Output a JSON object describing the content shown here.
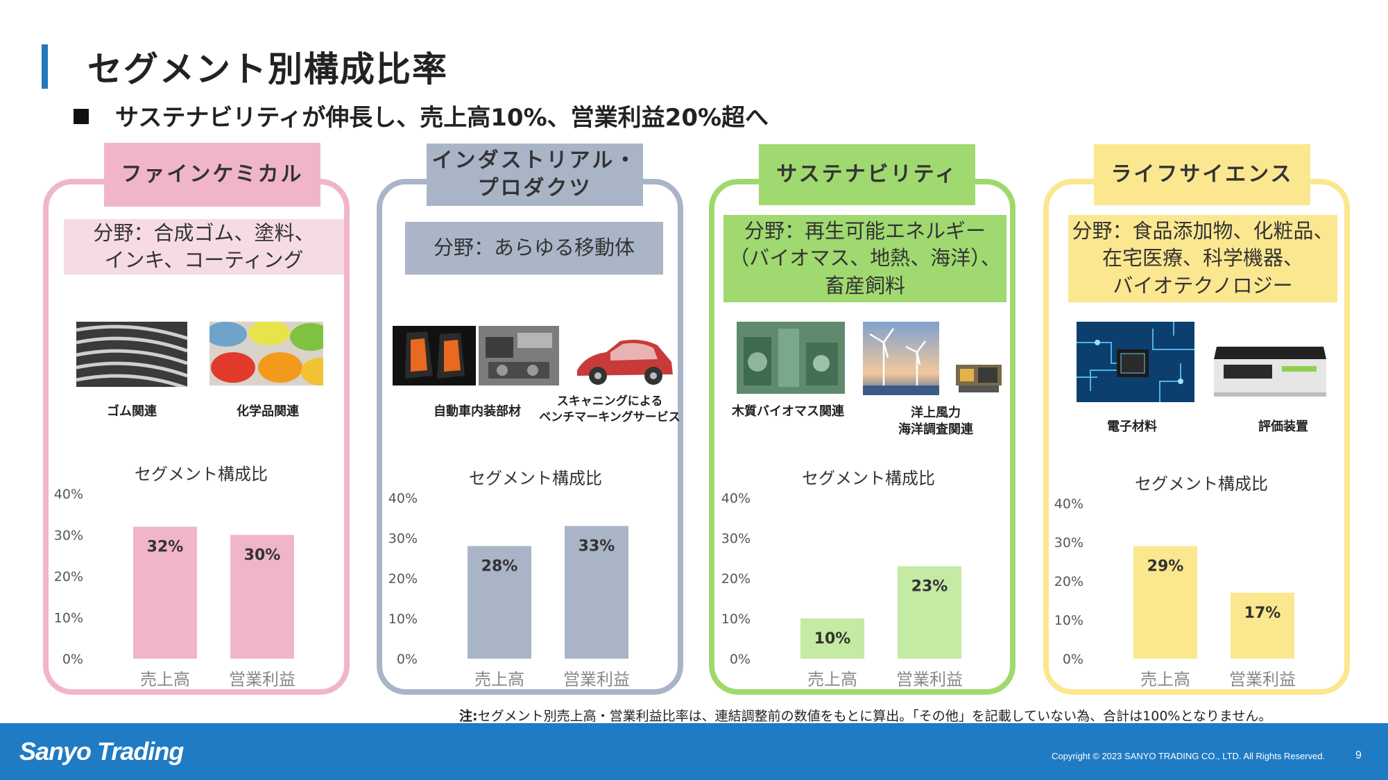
{
  "title": "セグメント別構成比率",
  "subtitle": "サステナビリティが伸長し、売上高10%、営業利益20%超へ",
  "colors": {
    "fine": "#f0b6c8",
    "industrial": "#a9b5c7",
    "sustain": "#a0d970",
    "life": "#fbe790",
    "fine_border": "#f0b6c8",
    "industrial_border": "#a9b5c7",
    "sustain_border": "#9fd96c",
    "life_border": "#fbe78e"
  },
  "segments": [
    {
      "name": "ファインケミカル",
      "field": "分野：合成ゴム、塗料、\nインキ、コーティング",
      "photos": [
        {
          "icon": "tire-icon",
          "caption": "ゴム関連"
        },
        {
          "icon": "paint-cans-icon",
          "caption": "化学品関連"
        }
      ]
    },
    {
      "name": "インダストリアル・\nプロダクツ",
      "field": "分野：あらゆる移動体",
      "photos": [
        {
          "icon": "car-seat-icon",
          "caption": "自動車内装部材"
        },
        {
          "icon": "engine-icon",
          "caption": ""
        },
        {
          "icon": "car-cutaway-icon",
          "caption": "スキャニングによる\nベンチマーキングサービス"
        }
      ]
    },
    {
      "name": "サステナビリティ",
      "field": "分野：再生可能エネルギー\n（バイオマス、地熱、海洋）、\n畜産飼料",
      "photos": [
        {
          "icon": "biomass-plant-icon",
          "caption": "木質バイオマス関連"
        },
        {
          "icon": "wind-turbine-icon",
          "caption": "洋上風力\n海洋調査関連"
        },
        {
          "icon": "survey-equipment-icon",
          "caption": ""
        }
      ]
    },
    {
      "name": "ライフサイエンス",
      "field": "分野：食品添加物、化粧品、\n在宅医療、科学機器、\nバイオテクノロジー",
      "photos": [
        {
          "icon": "circuit-board-icon",
          "caption": "電子材料"
        },
        {
          "icon": "analyzer-device-icon",
          "caption": "評価装置"
        }
      ]
    }
  ],
  "chart_data": [
    {
      "type": "bar",
      "title": "セグメント構成比",
      "categories": [
        "売上高",
        "営業利益"
      ],
      "values": [
        32,
        30
      ],
      "data_labels": [
        "32%",
        "30%"
      ],
      "yticks": [
        "0%",
        "10%",
        "20%",
        "30%",
        "40%"
      ],
      "ylim": [
        0,
        40
      ],
      "color": "#f0b6c8"
    },
    {
      "type": "bar",
      "title": "セグメント構成比",
      "categories": [
        "売上高",
        "営業利益"
      ],
      "values": [
        28,
        33
      ],
      "data_labels": [
        "28%",
        "33%"
      ],
      "yticks": [
        "0%",
        "10%",
        "20%",
        "30%",
        "40%"
      ],
      "ylim": [
        0,
        40
      ],
      "color": "#a9b5c7"
    },
    {
      "type": "bar",
      "title": "セグメント構成比",
      "categories": [
        "売上高",
        "営業利益"
      ],
      "values": [
        10,
        23
      ],
      "data_labels": [
        "10%",
        "23%"
      ],
      "yticks": [
        "0%",
        "10%",
        "20%",
        "30%",
        "40%"
      ],
      "ylim": [
        0,
        40
      ],
      "color": "#c5eaa3"
    },
    {
      "type": "bar",
      "title": "セグメント構成比",
      "categories": [
        "売上高",
        "営業利益"
      ],
      "values": [
        29,
        17
      ],
      "data_labels": [
        "29%",
        "17%"
      ],
      "yticks": [
        "0%",
        "10%",
        "20%",
        "30%",
        "40%"
      ],
      "ylim": [
        0,
        40
      ],
      "color": "#fbe78e"
    }
  ],
  "note": {
    "bold": "注:",
    "text": "セグメント別売上高・営業利益比率は、連結調整前の数値をもとに算出。「その他」を記載していない為、合計は100%となりません。"
  },
  "footer": {
    "logo": "Sanyo Trading",
    "copyright": "Copyright © 2023 SANYO TRADING CO., LTD. All Rights Reserved.",
    "page": "9"
  }
}
